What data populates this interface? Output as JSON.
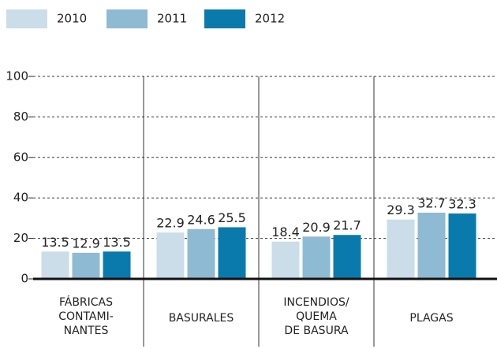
{
  "chart_data": {
    "type": "bar",
    "categories": [
      [
        "FÁBRICAS",
        "CONTAMI-",
        "NANTES"
      ],
      [
        "BASURALES"
      ],
      [
        "INCENDIOS/",
        "QUEMA",
        "DE BASURA"
      ],
      [
        "PLAGAS"
      ]
    ],
    "series": [
      {
        "name": "2010",
        "color": "#cadde9",
        "values": [
          13.5,
          22.9,
          18.4,
          29.3
        ]
      },
      {
        "name": "2011",
        "color": "#8fbad4",
        "values": [
          12.9,
          24.6,
          20.9,
          32.7
        ]
      },
      {
        "name": "2012",
        "color": "#0a7aad",
        "values": [
          13.5,
          25.5,
          21.7,
          32.3
        ]
      }
    ],
    "ylim": [
      0,
      100
    ],
    "yticks": [
      0,
      20,
      40,
      60,
      80,
      100
    ],
    "grid": true,
    "legend": "top"
  }
}
